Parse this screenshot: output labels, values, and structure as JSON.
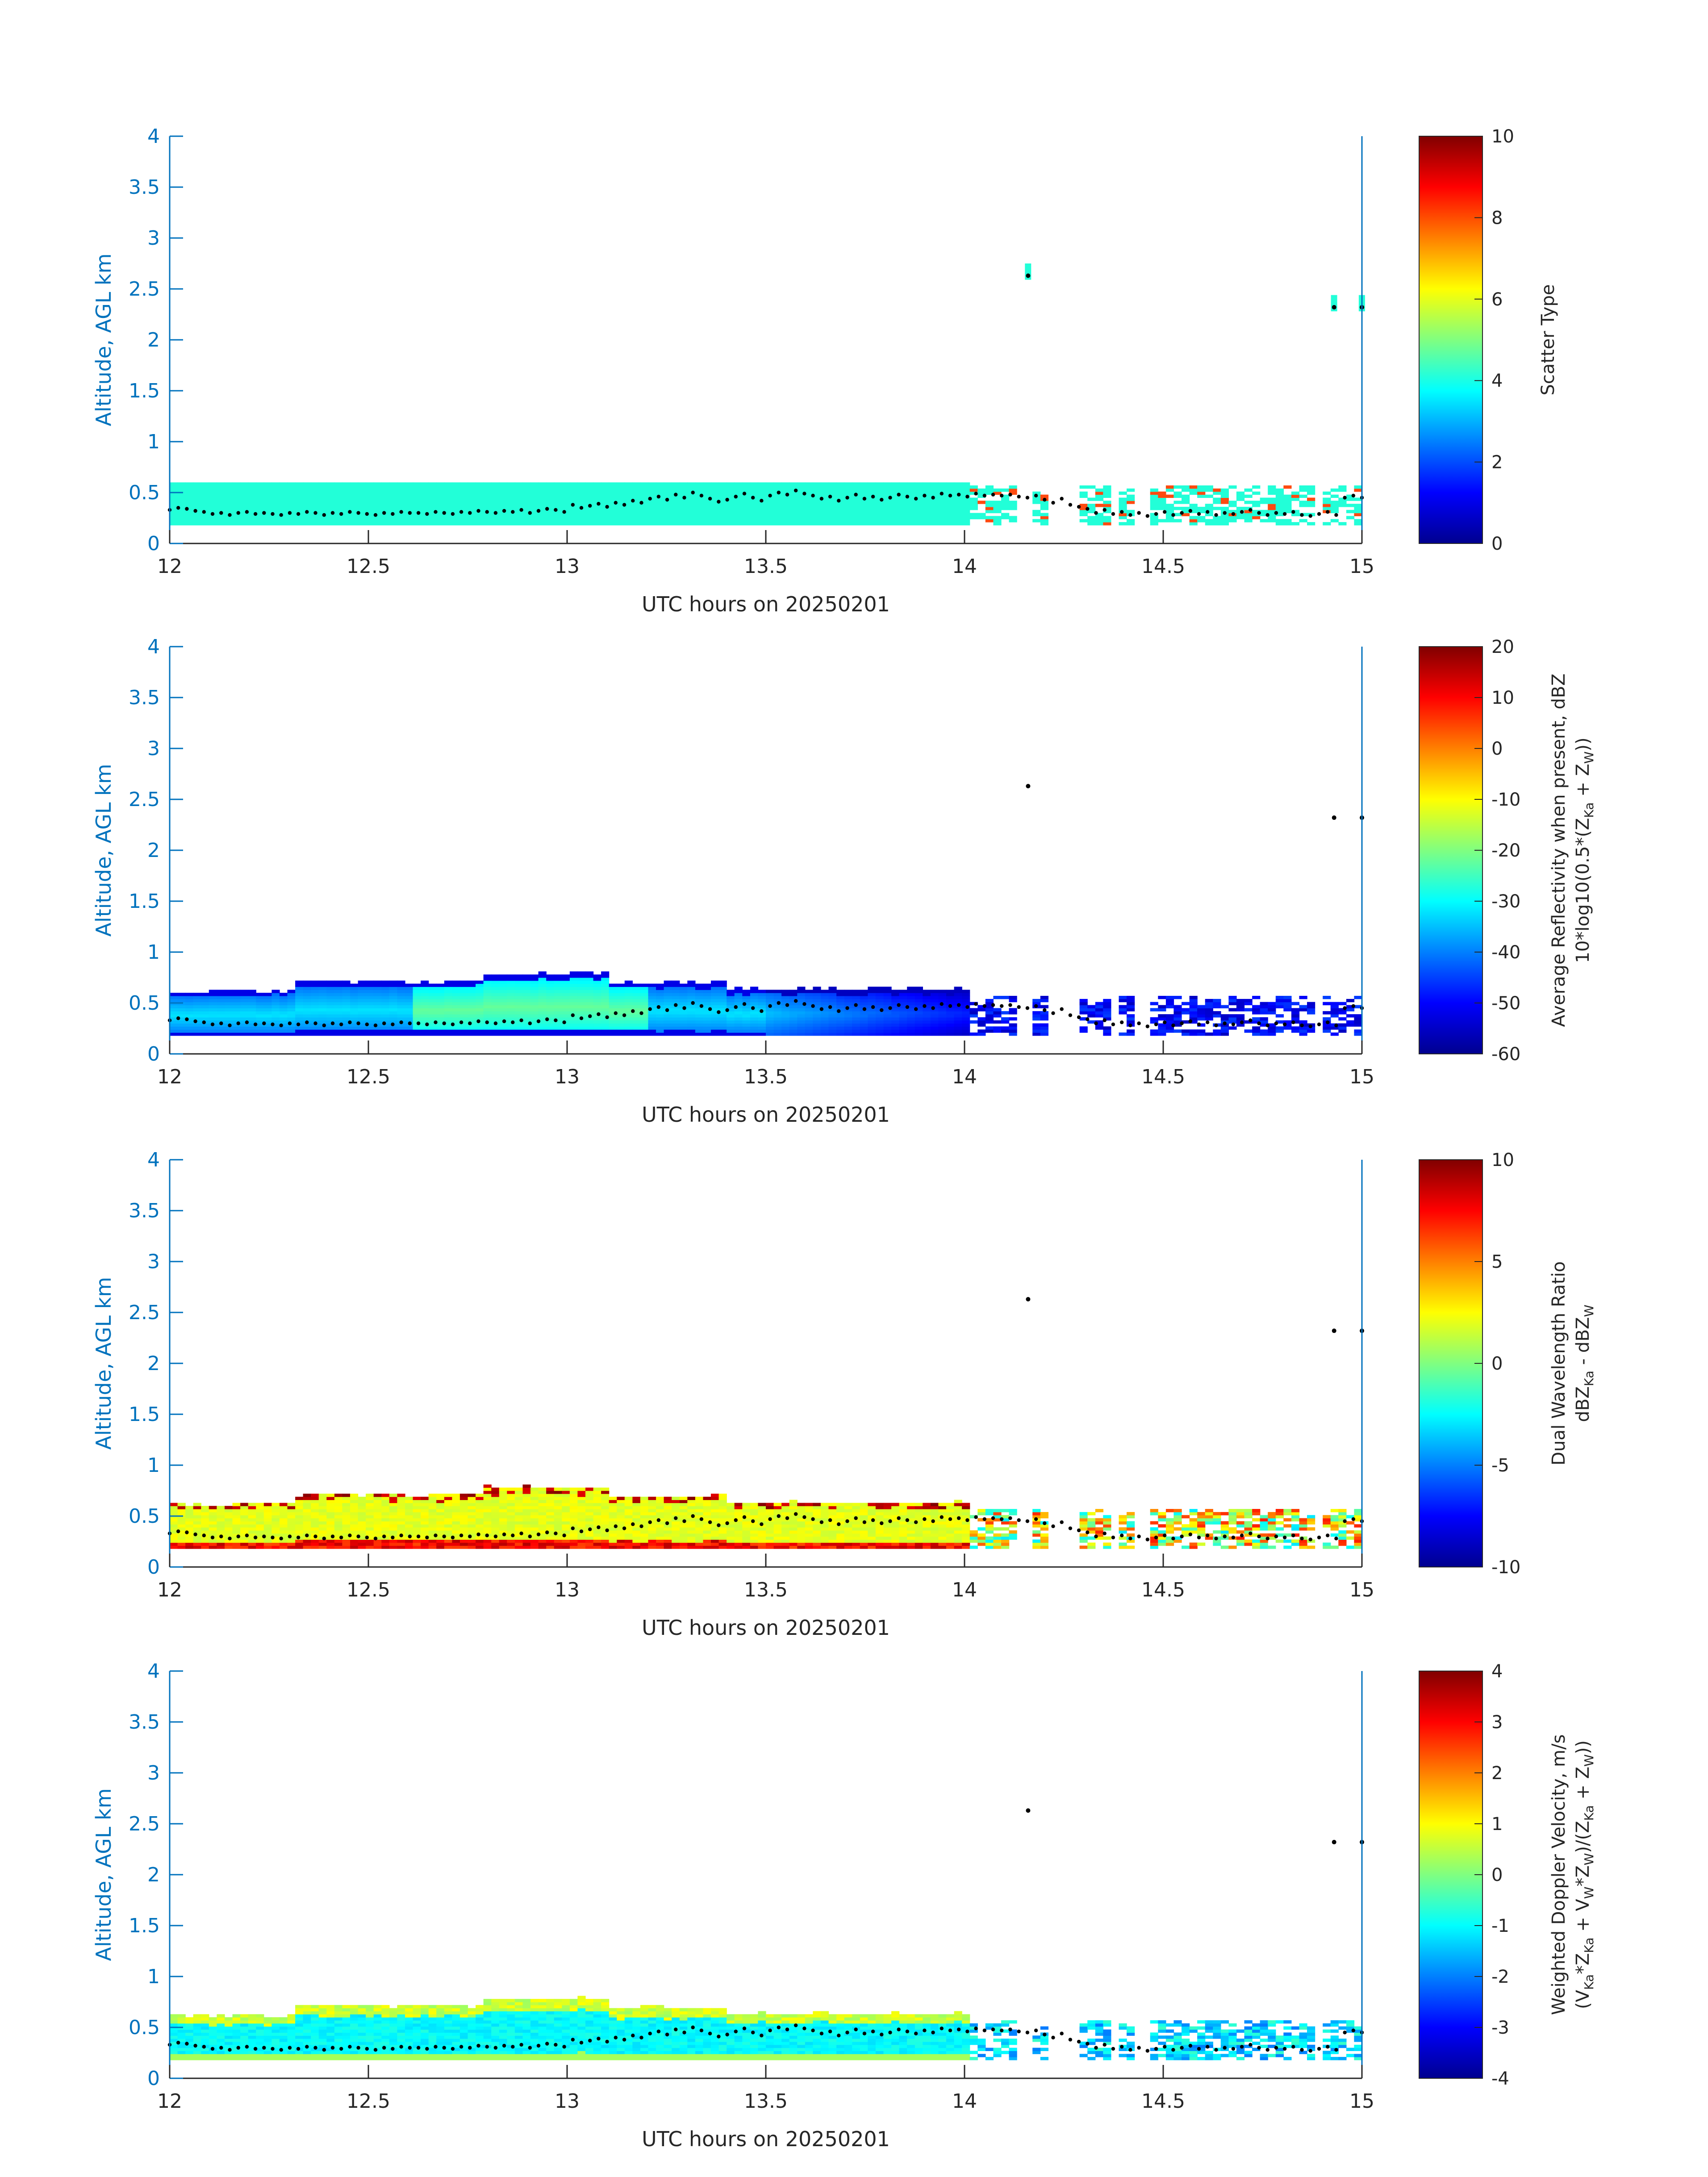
{
  "chart_data": [
    {
      "type": "heatmap",
      "ylabel": "Altitude, AGL km",
      "xlabel": "UTC hours on 20250201",
      "xlim": [
        12,
        15
      ],
      "ylim": [
        0,
        4
      ],
      "xticks": [
        "12",
        "12.5",
        "13",
        "13.5",
        "14",
        "14.5",
        "15"
      ],
      "yticks": [
        "0",
        "0.5",
        "1",
        "1.5",
        "2",
        "2.5",
        "3",
        "3.5",
        "4"
      ],
      "colorbar": {
        "title_lines": [
          "Scatter Type"
        ],
        "ticks": [
          "0",
          "2",
          "4",
          "6",
          "8",
          "10"
        ],
        "range": [
          0,
          10
        ],
        "colormap": "jet"
      },
      "field": "scatter_type"
    },
    {
      "type": "heatmap",
      "ylabel": "Altitude, AGL km",
      "xlabel": "UTC hours on 20250201",
      "xlim": [
        12,
        15
      ],
      "ylim": [
        0,
        4
      ],
      "xticks": [
        "12",
        "12.5",
        "13",
        "13.5",
        "14",
        "14.5",
        "15"
      ],
      "yticks": [
        "0",
        "0.5",
        "1",
        "1.5",
        "2",
        "2.5",
        "3",
        "3.5",
        "4"
      ],
      "colorbar": {
        "title_lines": [
          "Average Reflectivity when present, dBZ",
          "10*log10(0.5*(Z",
          "Ka",
          " + Z",
          "W",
          "))"
        ],
        "ticks": [
          "-60",
          "-50",
          "-40",
          "-30",
          "-20",
          "-10",
          "0",
          "10",
          "20"
        ],
        "range": [
          -60,
          20
        ],
        "colormap": "jet"
      },
      "field": "reflectivity"
    },
    {
      "type": "heatmap",
      "ylabel": "Altitude, AGL km",
      "xlabel": "UTC hours on 20250201",
      "xlim": [
        12,
        15
      ],
      "ylim": [
        0,
        4
      ],
      "xticks": [
        "12",
        "12.5",
        "13",
        "13.5",
        "14",
        "14.5",
        "15"
      ],
      "yticks": [
        "0",
        "0.5",
        "1",
        "1.5",
        "2",
        "2.5",
        "3",
        "3.5",
        "4"
      ],
      "colorbar": {
        "title_lines": [
          "Dual Wavelength Ratio",
          "dBZ",
          "Ka",
          " - dBZ",
          "W"
        ],
        "ticks": [
          "-10",
          "-5",
          "0",
          "5",
          "10"
        ],
        "range": [
          -10,
          10
        ],
        "colormap": "jet"
      },
      "field": "dwr"
    },
    {
      "type": "heatmap",
      "ylabel": "Altitude, AGL km",
      "xlabel": "UTC hours on 20250201",
      "xlim": [
        12,
        15
      ],
      "ylim": [
        0,
        4
      ],
      "xticks": [
        "12",
        "12.5",
        "13",
        "13.5",
        "14",
        "14.5",
        "15"
      ],
      "yticks": [
        "0",
        "0.5",
        "1",
        "1.5",
        "2",
        "2.5",
        "3",
        "3.5",
        "4"
      ],
      "colorbar": {
        "title_lines": [
          "Weighted Doppler Velocity, m/s",
          "(V",
          "Ka",
          "*Z",
          "Ka",
          " + V",
          "W",
          "*Z",
          "W",
          ")/(Z",
          "Ka",
          " + Z",
          "W",
          "))"
        ],
        "ticks": [
          "-4",
          "-3",
          "-2",
          "-1",
          "0",
          "1",
          "2",
          "3",
          "4"
        ],
        "range": [
          -4,
          4
        ],
        "colormap": "jet"
      },
      "field": "velocity"
    }
  ],
  "cloud_layer": {
    "base_km": 0.18,
    "top_km_approx": 0.6,
    "upper_layer_top_km_approx": 0.75,
    "isolated_echo_points": [
      {
        "x": 14.16,
        "y": 2.63
      },
      {
        "x": 14.93,
        "y": 2.32
      },
      {
        "x": 15.0,
        "y": 2.32
      }
    ]
  },
  "black_dot_series": {
    "x_start": 12.0,
    "x_end": 15.0,
    "y_values_km": [
      0.33,
      0.35,
      0.34,
      0.32,
      0.31,
      0.29,
      0.3,
      0.28,
      0.3,
      0.31,
      0.29,
      0.3,
      0.29,
      0.28,
      0.3,
      0.29,
      0.31,
      0.3,
      0.28,
      0.3,
      0.29,
      0.31,
      0.3,
      0.29,
      0.28,
      0.3,
      0.29,
      0.31,
      0.3,
      0.3,
      0.29,
      0.31,
      0.3,
      0.29,
      0.31,
      0.3,
      0.32,
      0.31,
      0.3,
      0.32,
      0.31,
      0.33,
      0.3,
      0.32,
      0.34,
      0.33,
      0.31,
      0.38,
      0.35,
      0.37,
      0.39,
      0.36,
      0.4,
      0.38,
      0.42,
      0.4,
      0.44,
      0.46,
      0.43,
      0.48,
      0.45,
      0.5,
      0.47,
      0.44,
      0.41,
      0.43,
      0.46,
      0.49,
      0.45,
      0.42,
      0.47,
      0.5,
      0.48,
      0.52,
      0.49,
      0.47,
      0.44,
      0.46,
      0.42,
      0.45,
      0.48,
      0.44,
      0.46,
      0.43,
      0.45,
      0.48,
      0.46,
      0.44,
      0.47,
      0.45,
      0.49,
      0.47,
      0.48,
      0.46,
      0.49,
      0.47,
      0.48,
      0.47,
      0.48,
      0.46,
      0.45,
      0.47,
      0.43,
      0.4,
      0.44,
      0.38,
      0.36,
      0.34,
      0.3,
      0.33,
      0.29,
      0.31,
      0.28,
      0.3,
      0.27,
      0.29,
      0.31,
      0.28,
      0.3,
      0.32,
      0.29,
      0.31,
      0.28,
      0.3,
      0.29,
      0.31,
      0.33,
      0.3,
      0.28,
      0.3,
      0.29,
      0.31,
      0.28,
      0.27,
      0.29,
      0.31,
      0.28,
      0.45,
      0.47,
      0.45
    ]
  }
}
